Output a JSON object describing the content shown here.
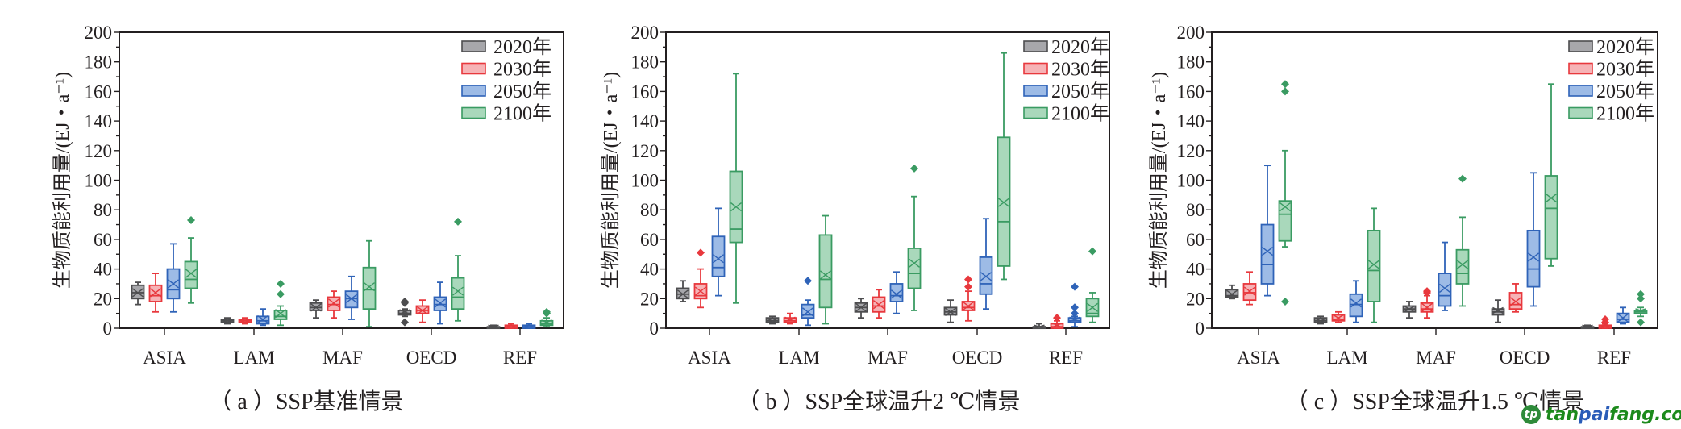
{
  "figure": {
    "legend_suffix": "年",
    "series_colors": {
      "2020": {
        "stroke": "#4d4d4f",
        "fill": "#a7a7ab"
      },
      "2030": {
        "stroke": "#e8383d",
        "fill": "#f6b3b6"
      },
      "2050": {
        "stroke": "#2f63b8",
        "fill": "#9dbbe6"
      },
      "2100": {
        "stroke": "#3a9b62",
        "fill": "#a9d8bb"
      }
    },
    "watermark": {
      "part1": "tan",
      "part2": "pai",
      "part3": "fang.com",
      "logo": "tp"
    }
  },
  "chart_data": [
    {
      "type": "box",
      "title": "（ a ）SSP基准情景",
      "xlabel": "",
      "ylabel": "生物质能利用量/(EJ・a⁻¹)",
      "ylim": [
        0,
        200
      ],
      "yticks": [
        "0",
        "20",
        "40",
        "60",
        "80",
        "100",
        "120",
        "140",
        "160",
        "180",
        "200"
      ],
      "grid": false,
      "legend_position": "top-right",
      "categories": [
        "ASIA",
        "LAM",
        "MAF",
        "OECD",
        "REF"
      ],
      "series": [
        {
          "name": "2020年",
          "boxes": [
            {
              "min": 16,
              "q1": 20,
              "median": 24,
              "q3": 29,
              "max": 31,
              "mean": 24,
              "outliers": []
            },
            {
              "min": 3,
              "q1": 4,
              "median": 5,
              "q3": 6,
              "max": 7,
              "mean": 5,
              "outliers": []
            },
            {
              "min": 7,
              "q1": 12,
              "median": 14,
              "q3": 17,
              "max": 19,
              "mean": 14,
              "outliers": []
            },
            {
              "min": 8,
              "q1": 9,
              "median": 10,
              "q3": 12,
              "max": 13,
              "mean": 11,
              "outliers": [
                4,
                17,
                18
              ]
            },
            {
              "min": 0,
              "q1": 0,
              "median": 0.5,
              "q3": 1,
              "max": 2,
              "mean": 1,
              "outliers": []
            }
          ]
        },
        {
          "name": "2030年",
          "boxes": [
            {
              "min": 11,
              "q1": 18,
              "median": 22,
              "q3": 29,
              "max": 37,
              "mean": 24,
              "outliers": []
            },
            {
              "min": 3,
              "q1": 4,
              "median": 5,
              "q3": 6,
              "max": 7,
              "mean": 5,
              "outliers": []
            },
            {
              "min": 7,
              "q1": 12,
              "median": 16,
              "q3": 21,
              "max": 25,
              "mean": 17,
              "outliers": []
            },
            {
              "min": 4,
              "q1": 10,
              "median": 12,
              "q3": 15,
              "max": 19,
              "mean": 12,
              "outliers": []
            },
            {
              "min": 0,
              "q1": 0,
              "median": 1,
              "q3": 2,
              "max": 3,
              "mean": 1,
              "outliers": []
            }
          ]
        },
        {
          "name": "2050年",
          "boxes": [
            {
              "min": 11,
              "q1": 20,
              "median": 26,
              "q3": 40,
              "max": 57,
              "mean": 30,
              "outliers": []
            },
            {
              "min": 2,
              "q1": 3,
              "median": 5,
              "q3": 8,
              "max": 13,
              "mean": 6,
              "outliers": []
            },
            {
              "min": 6,
              "q1": 14,
              "median": 20,
              "q3": 25,
              "max": 35,
              "mean": 20,
              "outliers": []
            },
            {
              "min": 3,
              "q1": 12,
              "median": 16,
              "q3": 21,
              "max": 31,
              "mean": 17,
              "outliers": []
            },
            {
              "min": 0,
              "q1": 0,
              "median": 1,
              "q3": 2,
              "max": 3,
              "mean": 1,
              "outliers": []
            }
          ]
        },
        {
          "name": "2100年",
          "boxes": [
            {
              "min": 17,
              "q1": 27,
              "median": 33,
              "q3": 45,
              "max": 61,
              "mean": 37,
              "outliers": [
                73
              ]
            },
            {
              "min": 2,
              "q1": 6,
              "median": 8,
              "q3": 12,
              "max": 15,
              "mean": 10,
              "outliers": [
                23,
                30
              ]
            },
            {
              "min": 1,
              "q1": 13,
              "median": 26,
              "q3": 41,
              "max": 59,
              "mean": 28,
              "outliers": []
            },
            {
              "min": 5,
              "q1": 13,
              "median": 21,
              "q3": 34,
              "max": 49,
              "mean": 25,
              "outliers": [
                72
              ]
            },
            {
              "min": 1,
              "q1": 2,
              "median": 3,
              "q3": 5,
              "max": 7,
              "mean": 4,
              "outliers": [
                10,
                11
              ]
            }
          ]
        }
      ]
    },
    {
      "type": "box",
      "title": "（ b ）SSP全球温升2 ℃情景",
      "xlabel": "",
      "ylabel": "生物质能利用量/(EJ・a⁻¹)",
      "ylim": [
        0,
        200
      ],
      "yticks": [
        "0",
        "20",
        "40",
        "60",
        "80",
        "100",
        "120",
        "140",
        "160",
        "180",
        "200"
      ],
      "grid": false,
      "legend_position": "top-right",
      "categories": [
        "ASIA",
        "LAM",
        "MAF",
        "OECD",
        "REF"
      ],
      "series": [
        {
          "name": "2020年",
          "boxes": [
            {
              "min": 18,
              "q1": 20,
              "median": 23,
              "q3": 27,
              "max": 32,
              "mean": 23,
              "outliers": []
            },
            {
              "min": 3,
              "q1": 4,
              "median": 5,
              "q3": 7,
              "max": 8,
              "mean": 5,
              "outliers": []
            },
            {
              "min": 7,
              "q1": 11,
              "median": 14,
              "q3": 17,
              "max": 20,
              "mean": 14,
              "outliers": []
            },
            {
              "min": 4,
              "q1": 9,
              "median": 11,
              "q3": 14,
              "max": 19,
              "mean": 11,
              "outliers": []
            },
            {
              "min": 0,
              "q1": 0,
              "median": 1,
              "q3": 1,
              "max": 3,
              "mean": 1,
              "outliers": []
            }
          ]
        },
        {
          "name": "2030年",
          "boxes": [
            {
              "min": 14,
              "q1": 20,
              "median": 22,
              "q3": 30,
              "max": 40,
              "mean": 25,
              "outliers": [
                51
              ]
            },
            {
              "min": 3,
              "q1": 4,
              "median": 5,
              "q3": 7,
              "max": 10,
              "mean": 6,
              "outliers": []
            },
            {
              "min": 7,
              "q1": 11,
              "median": 15,
              "q3": 21,
              "max": 26,
              "mean": 16,
              "outliers": []
            },
            {
              "min": 5,
              "q1": 12,
              "median": 14,
              "q3": 18,
              "max": 25,
              "mean": 15,
              "outliers": [
                28,
                33
              ]
            },
            {
              "min": 0,
              "q1": 0,
              "median": 1,
              "q3": 3,
              "max": 5,
              "mean": 2,
              "outliers": [
                7
              ]
            }
          ]
        },
        {
          "name": "2050年",
          "boxes": [
            {
              "min": 22,
              "q1": 35,
              "median": 41,
              "q3": 62,
              "max": 81,
              "mean": 47,
              "outliers": []
            },
            {
              "min": 2,
              "q1": 7,
              "median": 9,
              "q3": 16,
              "max": 19,
              "mean": 11,
              "outliers": [
                32
              ]
            },
            {
              "min": 10,
              "q1": 18,
              "median": 22,
              "q3": 30,
              "max": 38,
              "mean": 23,
              "outliers": []
            },
            {
              "min": 13,
              "q1": 23,
              "median": 30,
              "q3": 48,
              "max": 74,
              "mean": 35,
              "outliers": []
            },
            {
              "min": 1,
              "q1": 4,
              "median": 5,
              "q3": 7,
              "max": 8,
              "mean": 6,
              "outliers": [
                10,
                14,
                28
              ]
            }
          ]
        },
        {
          "name": "2100年",
          "boxes": [
            {
              "min": 17,
              "q1": 58,
              "median": 67,
              "q3": 106,
              "max": 172,
              "mean": 82,
              "outliers": []
            },
            {
              "min": 3,
              "q1": 14,
              "median": 33,
              "q3": 63,
              "max": 76,
              "mean": 36,
              "outliers": []
            },
            {
              "min": 12,
              "q1": 27,
              "median": 37,
              "q3": 54,
              "max": 89,
              "mean": 44,
              "outliers": [
                108
              ]
            },
            {
              "min": 33,
              "q1": 42,
              "median": 72,
              "q3": 129,
              "max": 186,
              "mean": 85,
              "outliers": []
            },
            {
              "min": 4,
              "q1": 8,
              "median": 10,
              "q3": 20,
              "max": 24,
              "mean": 14,
              "outliers": [
                52
              ]
            }
          ]
        }
      ]
    },
    {
      "type": "box",
      "title": "（ c ）SSP全球温升1.5 ℃情景",
      "xlabel": "",
      "ylabel": "生物质能利用量/(EJ・a⁻¹)",
      "ylim": [
        0,
        200
      ],
      "yticks": [
        "0",
        "20",
        "40",
        "60",
        "80",
        "100",
        "120",
        "140",
        "160",
        "180",
        "200"
      ],
      "grid": false,
      "legend_position": "top-right",
      "categories": [
        "ASIA",
        "LAM",
        "MAF",
        "OECD",
        "REF"
      ],
      "series": [
        {
          "name": "2020年",
          "boxes": [
            {
              "min": 20,
              "q1": 21,
              "median": 22,
              "q3": 26,
              "max": 29,
              "mean": 23,
              "outliers": []
            },
            {
              "min": 3,
              "q1": 4,
              "median": 5,
              "q3": 7,
              "max": 8,
              "mean": 5,
              "outliers": []
            },
            {
              "min": 7,
              "q1": 11,
              "median": 13,
              "q3": 15,
              "max": 18,
              "mean": 13,
              "outliers": []
            },
            {
              "min": 4,
              "q1": 9,
              "median": 11,
              "q3": 13,
              "max": 19,
              "mean": 12,
              "outliers": []
            },
            {
              "min": 0,
              "q1": 0,
              "median": 0.5,
              "q3": 1,
              "max": 2,
              "mean": 1,
              "outliers": []
            }
          ]
        },
        {
          "name": "2030年",
          "boxes": [
            {
              "min": 16,
              "q1": 19,
              "median": 24,
              "q3": 30,
              "max": 38,
              "mean": 25,
              "outliers": []
            },
            {
              "min": 4,
              "q1": 5,
              "median": 6,
              "q3": 9,
              "max": 11,
              "mean": 7,
              "outliers": []
            },
            {
              "min": 7,
              "q1": 11,
              "median": 13,
              "q3": 17,
              "max": 22,
              "mean": 14,
              "outliers": [
                24,
                25
              ]
            },
            {
              "min": 11,
              "q1": 13,
              "median": 16,
              "q3": 24,
              "max": 30,
              "mean": 18,
              "outliers": []
            },
            {
              "min": 0,
              "q1": 0,
              "median": 1,
              "q3": 2,
              "max": 3,
              "mean": 1,
              "outliers": [
                4,
                6
              ]
            }
          ]
        },
        {
          "name": "2050年",
          "boxes": [
            {
              "min": 22,
              "q1": 30,
              "median": 43,
              "q3": 70,
              "max": 110,
              "mean": 52,
              "outliers": []
            },
            {
              "min": 4,
              "q1": 8,
              "median": 16,
              "q3": 23,
              "max": 32,
              "mean": 17,
              "outliers": []
            },
            {
              "min": 12,
              "q1": 15,
              "median": 22,
              "q3": 37,
              "max": 58,
              "mean": 27,
              "outliers": []
            },
            {
              "min": 15,
              "q1": 28,
              "median": 40,
              "q3": 66,
              "max": 105,
              "mean": 48,
              "outliers": []
            },
            {
              "min": 3,
              "q1": 4,
              "median": 6,
              "q3": 10,
              "max": 14,
              "mean": 7,
              "outliers": []
            }
          ]
        },
        {
          "name": "2100年",
          "boxes": [
            {
              "min": 55,
              "q1": 59,
              "median": 77,
              "q3": 86,
              "max": 120,
              "mean": 82,
              "outliers": [
                18,
                160,
                165
              ]
            },
            {
              "min": 4,
              "q1": 18,
              "median": 39,
              "q3": 66,
              "max": 81,
              "mean": 43,
              "outliers": []
            },
            {
              "min": 15,
              "q1": 30,
              "median": 37,
              "q3": 53,
              "max": 75,
              "mean": 43,
              "outliers": [
                101
              ]
            },
            {
              "min": 42,
              "q1": 47,
              "median": 81,
              "q3": 103,
              "max": 165,
              "mean": 88,
              "outliers": []
            },
            {
              "min": 8,
              "q1": 10,
              "median": 11,
              "q3": 12,
              "max": 14,
              "mean": 12,
              "outliers": [
                4,
                20,
                23
              ]
            }
          ]
        }
      ]
    }
  ]
}
